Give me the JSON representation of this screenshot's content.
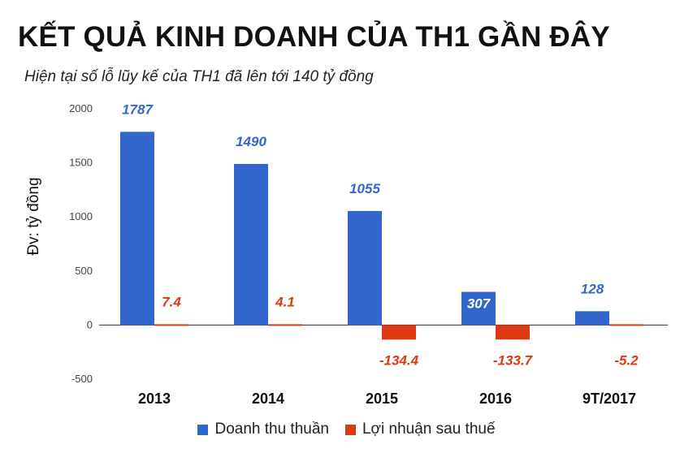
{
  "title": "KẾT QUẢ KINH DOANH CỦA TH1 GẦN ĐÂY",
  "subtitle": "Hiện tại số lỗ lũy kế của TH1 đã lên tới 140 tỷ đồng",
  "chart_data": {
    "type": "bar",
    "title": "KẾT QUẢ KINH DOANH CỦA TH1 GẦN ĐÂY",
    "subtitle": "Hiện tại số lỗ lũy kế của TH1 đã lên tới 140 tỷ đồng",
    "xlabel": "",
    "ylabel": "Đv: tỷ đồng",
    "categories": [
      "2013",
      "2014",
      "2015",
      "2016",
      "9T/2017"
    ],
    "ylim": [
      -500,
      2000
    ],
    "yticks": [
      2000,
      1500,
      1000,
      500,
      0,
      -500
    ],
    "grid": false,
    "legend_position": "bottom",
    "series": [
      {
        "name": "Doanh thu thuần",
        "color": "#3366cc",
        "values": [
          1787,
          1490,
          1055,
          307,
          128
        ],
        "labels": [
          "1787",
          "1490",
          "1055",
          "307",
          "128"
        ]
      },
      {
        "name": "Lợi nhuận sau thuế",
        "color": "#dc3912",
        "values": [
          7.4,
          4.1,
          -134.4,
          -133.7,
          -5.2
        ],
        "labels": [
          "7.4",
          "4.1",
          "-134.4",
          "-133.7",
          "-5.2"
        ]
      }
    ]
  }
}
